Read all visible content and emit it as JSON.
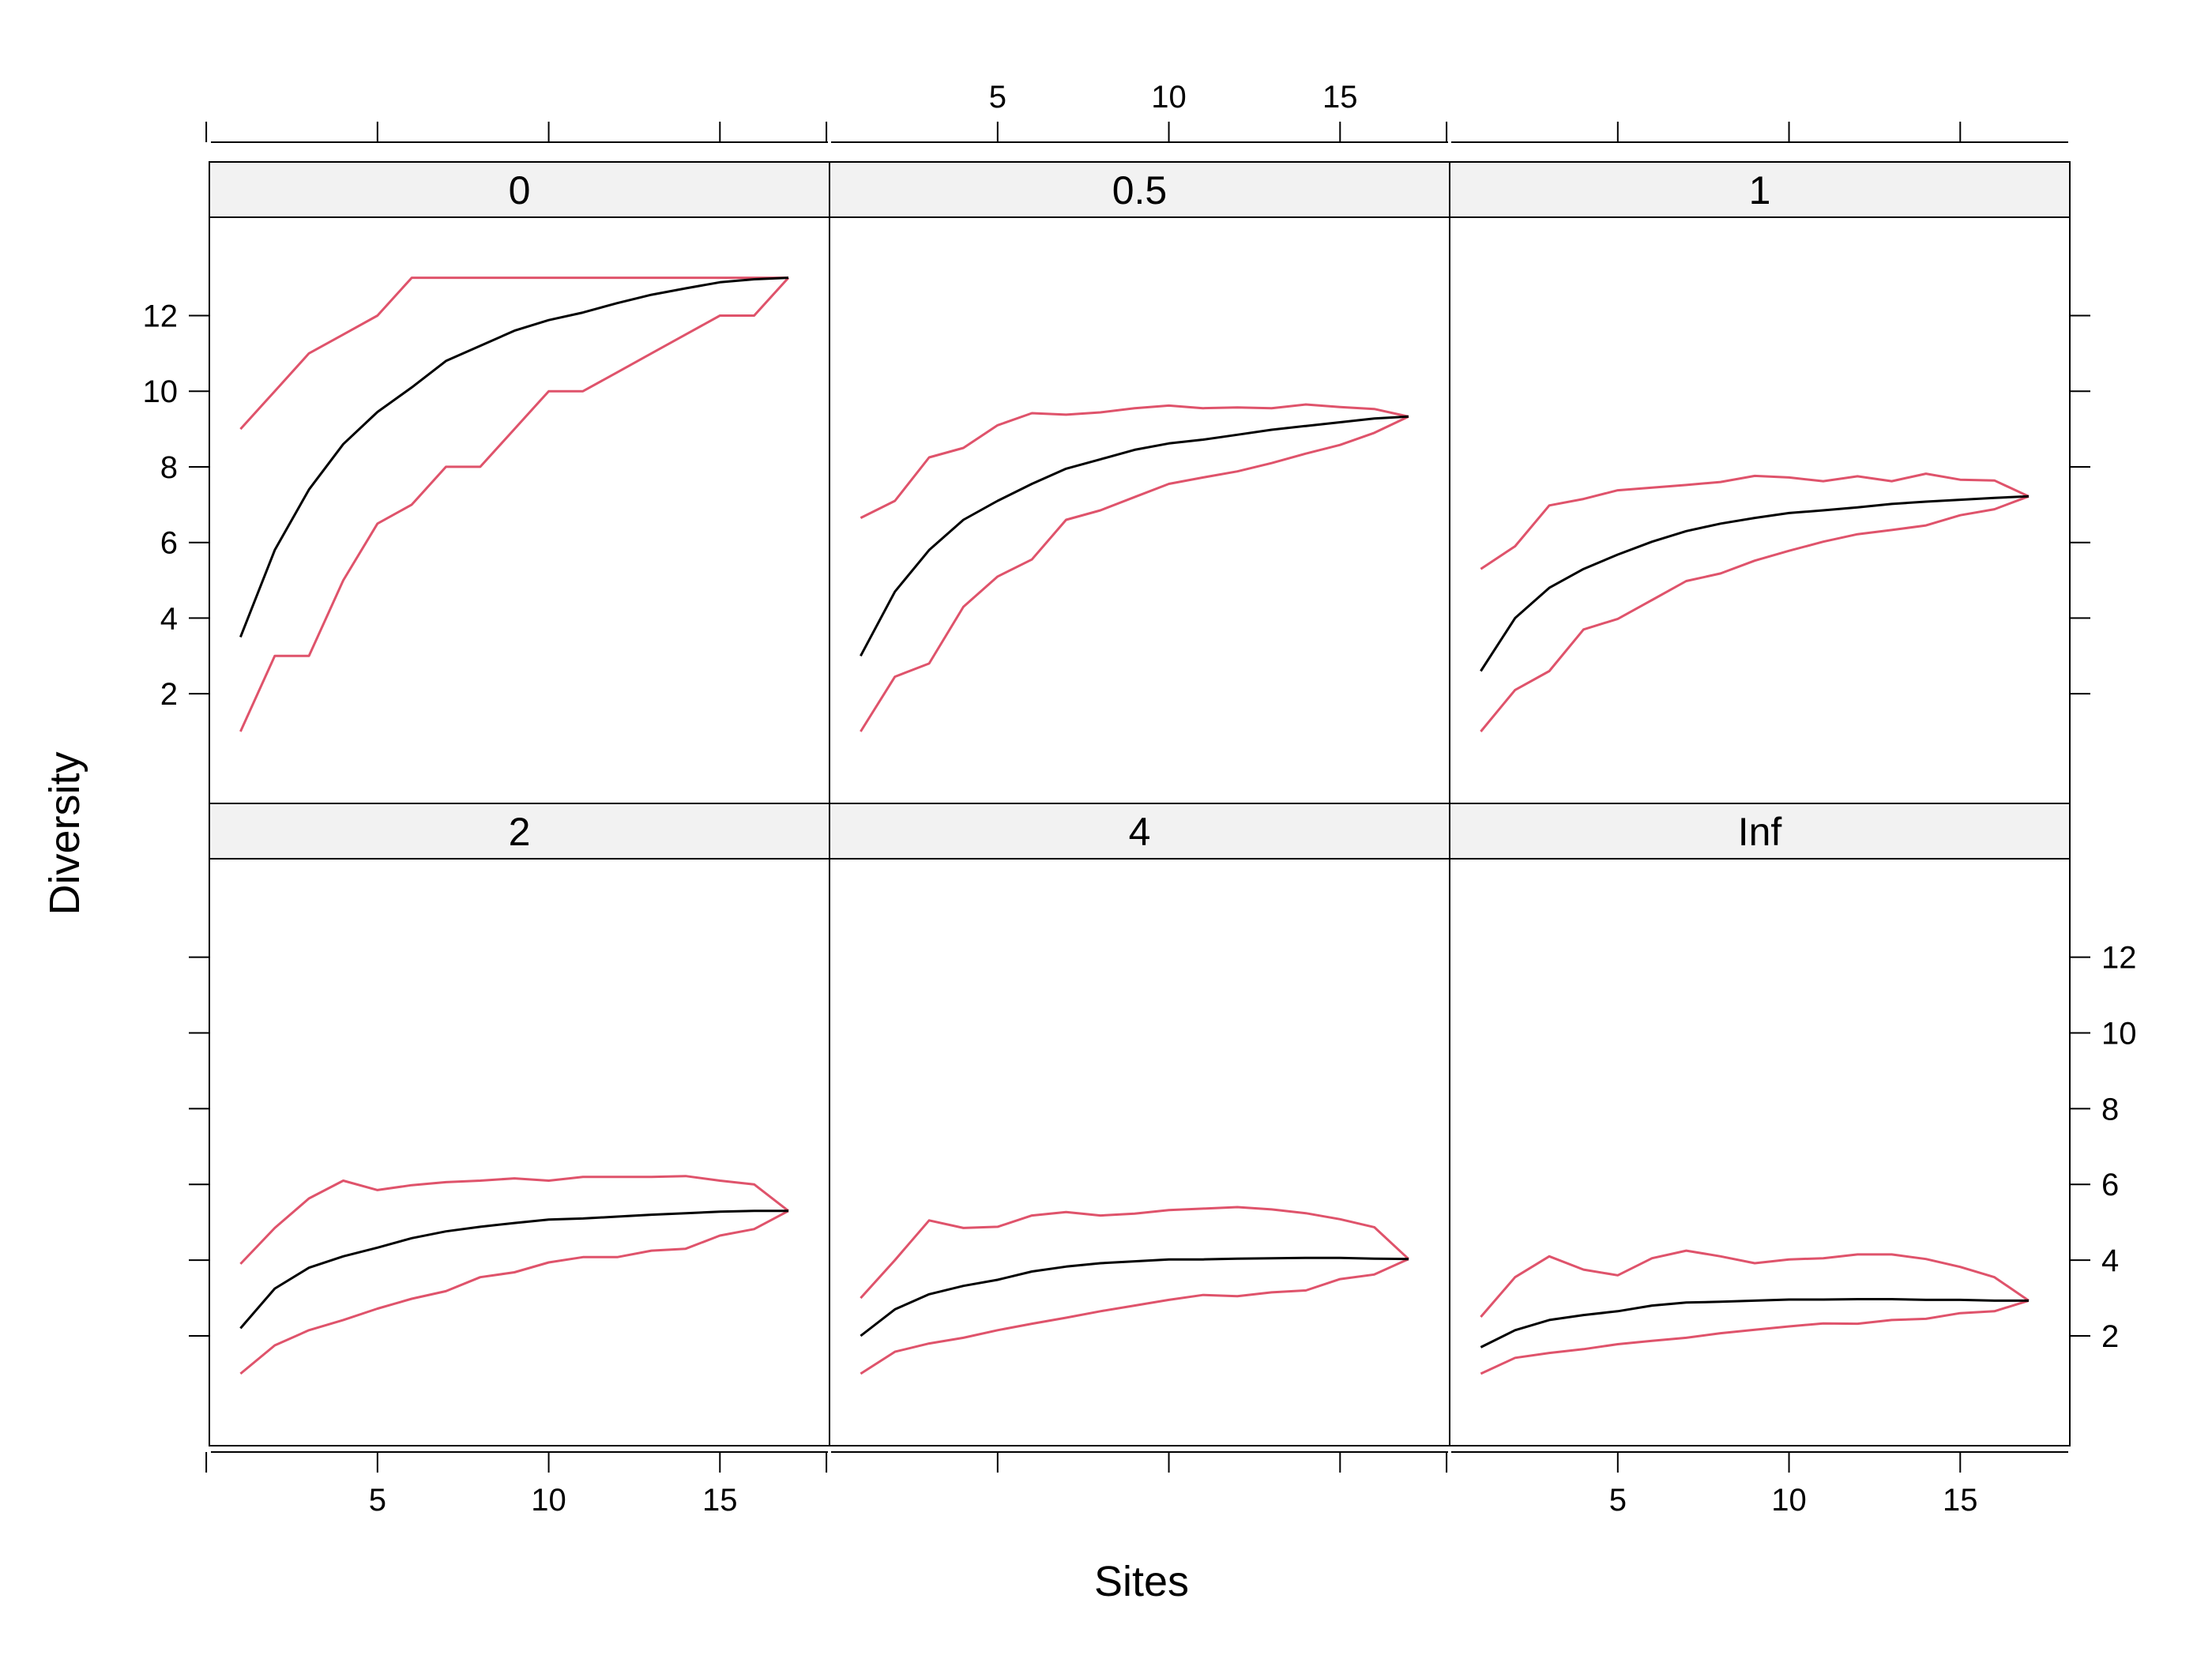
{
  "chart_data": {
    "type": "line",
    "layout": "3 columns x 2 rows trellis",
    "xlabel": "Sites",
    "ylabel": "Diversity",
    "xlim": [
      0.09,
      18.2
    ],
    "ylim": [
      -0.9,
      14.6
    ],
    "x_ticks": [
      5,
      10,
      15
    ],
    "x_tick_labels": [
      "5",
      "10",
      "15"
    ],
    "y_ticks": [
      2,
      4,
      6,
      8,
      10,
      12
    ],
    "y_tick_labels": [
      "2",
      "4",
      "6",
      "8",
      "10",
      "12"
    ],
    "grid": false,
    "colors": {
      "mean": "#000000",
      "bounds": "#DF536B",
      "strip": "#F2F2F2",
      "frame": "#000000"
    },
    "x": [
      1,
      2,
      3,
      4,
      5,
      6,
      7,
      8,
      9,
      10,
      11,
      12,
      13,
      14,
      15,
      16,
      17
    ],
    "panels": [
      {
        "label": "0",
        "mean": [
          3.5,
          5.8,
          7.4,
          8.6,
          9.45,
          10.1,
          10.8,
          11.2,
          11.6,
          11.88,
          12.08,
          12.33,
          12.55,
          12.72,
          12.88,
          12.96,
          13.0
        ],
        "upper": [
          9.0,
          10.0,
          11.0,
          11.5,
          12.0,
          13.0,
          13.0,
          13.0,
          13.0,
          13.0,
          13.0,
          13.0,
          13.0,
          13.0,
          13.0,
          13.0,
          13.0
        ],
        "lower": [
          1.0,
          3.0,
          3.0,
          5.0,
          6.5,
          7.0,
          8.0,
          8.0,
          9.0,
          10.0,
          10.0,
          10.5,
          11.0,
          11.5,
          12.0,
          12.0,
          13.0
        ]
      },
      {
        "label": "0.5",
        "mean": [
          3.0,
          4.7,
          5.8,
          6.6,
          7.1,
          7.55,
          7.95,
          8.2,
          8.45,
          8.62,
          8.72,
          8.85,
          8.98,
          9.08,
          9.18,
          9.28,
          9.33
        ],
        "upper": [
          6.65,
          7.1,
          8.25,
          8.5,
          9.1,
          9.42,
          9.38,
          9.44,
          9.55,
          9.62,
          9.55,
          9.57,
          9.55,
          9.65,
          9.58,
          9.53,
          9.33
        ],
        "lower": [
          1.0,
          2.45,
          2.8,
          4.3,
          5.1,
          5.55,
          6.6,
          6.85,
          7.2,
          7.55,
          7.72,
          7.88,
          8.1,
          8.35,
          8.58,
          8.9,
          9.33
        ]
      },
      {
        "label": "1",
        "mean": [
          2.6,
          4.0,
          4.8,
          5.3,
          5.68,
          6.02,
          6.3,
          6.5,
          6.65,
          6.78,
          6.85,
          6.93,
          7.02,
          7.08,
          7.13,
          7.18,
          7.22
        ],
        "upper": [
          5.3,
          5.9,
          6.98,
          7.15,
          7.38,
          7.45,
          7.52,
          7.6,
          7.76,
          7.72,
          7.62,
          7.75,
          7.62,
          7.82,
          7.66,
          7.64,
          7.22
        ],
        "lower": [
          1.0,
          2.1,
          2.6,
          3.7,
          3.98,
          4.48,
          4.98,
          5.18,
          5.52,
          5.78,
          6.02,
          6.22,
          6.33,
          6.45,
          6.72,
          6.88,
          7.22
        ]
      },
      {
        "label": "2",
        "mean": [
          2.2,
          3.25,
          3.8,
          4.1,
          4.33,
          4.58,
          4.76,
          4.88,
          4.98,
          5.07,
          5.1,
          5.15,
          5.2,
          5.24,
          5.28,
          5.3,
          5.3
        ],
        "upper": [
          3.9,
          4.85,
          5.63,
          6.1,
          5.85,
          5.98,
          6.06,
          6.1,
          6.16,
          6.1,
          6.2,
          6.2,
          6.2,
          6.22,
          6.1,
          6.0,
          5.3
        ],
        "lower": [
          1.0,
          1.75,
          2.15,
          2.42,
          2.72,
          2.98,
          3.18,
          3.55,
          3.68,
          3.94,
          4.08,
          4.08,
          4.25,
          4.3,
          4.65,
          4.82,
          5.3
        ]
      },
      {
        "label": "4",
        "mean": [
          2.0,
          2.7,
          3.1,
          3.32,
          3.48,
          3.7,
          3.83,
          3.92,
          3.97,
          4.02,
          4.02,
          4.04,
          4.05,
          4.06,
          4.06,
          4.04,
          4.03
        ],
        "upper": [
          3.0,
          4.0,
          5.05,
          4.85,
          4.88,
          5.18,
          5.27,
          5.18,
          5.23,
          5.32,
          5.36,
          5.4,
          5.34,
          5.24,
          5.08,
          4.87,
          4.03
        ],
        "lower": [
          1.0,
          1.58,
          1.8,
          1.95,
          2.15,
          2.32,
          2.48,
          2.65,
          2.8,
          2.95,
          3.08,
          3.05,
          3.15,
          3.2,
          3.5,
          3.62,
          4.03
        ]
      },
      {
        "label": "Inf",
        "mean": [
          1.7,
          2.15,
          2.42,
          2.55,
          2.65,
          2.8,
          2.88,
          2.9,
          2.93,
          2.96,
          2.96,
          2.97,
          2.97,
          2.95,
          2.95,
          2.93,
          2.93
        ],
        "upper": [
          2.5,
          3.55,
          4.1,
          3.75,
          3.6,
          4.05,
          4.25,
          4.1,
          3.92,
          4.02,
          4.05,
          4.15,
          4.15,
          4.03,
          3.82,
          3.55,
          2.93
        ],
        "lower": [
          1.0,
          1.42,
          1.55,
          1.65,
          1.78,
          1.87,
          1.95,
          2.07,
          2.16,
          2.25,
          2.33,
          2.32,
          2.42,
          2.45,
          2.6,
          2.65,
          2.93
        ]
      }
    ]
  }
}
